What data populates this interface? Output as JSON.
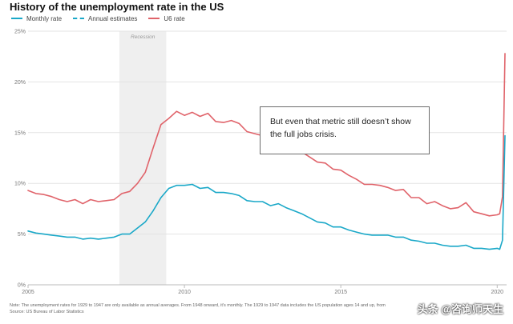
{
  "chart_data": {
    "type": "line",
    "title": "History of the unemployment rate in the US",
    "legend": [
      {
        "name": "Monthly rate",
        "color": "#1aa8c8",
        "style": "solid"
      },
      {
        "name": "Annual estimates",
        "color": "#1aa8c8",
        "style": "dashed"
      },
      {
        "name": "U6 rate",
        "color": "#e0636a",
        "style": "solid"
      }
    ],
    "xlim": [
      2005,
      2020.3
    ],
    "ylim": [
      0,
      25
    ],
    "x_ticks": [
      {
        "value": 2005,
        "label": "2005"
      },
      {
        "value": 2010,
        "label": "2010"
      },
      {
        "value": 2015,
        "label": "2015"
      },
      {
        "value": 2020,
        "label": "2020"
      }
    ],
    "y_ticks": [
      {
        "value": 0,
        "label": "0%"
      },
      {
        "value": 5,
        "label": "5%"
      },
      {
        "value": 10,
        "label": "10%"
      },
      {
        "value": 15,
        "label": "15%"
      },
      {
        "value": 20,
        "label": "20%"
      },
      {
        "value": 25,
        "label": "25%"
      }
    ],
    "recession": {
      "label": "Recession",
      "start": 2007.92,
      "end": 2009.42
    },
    "series": [
      {
        "name": "Monthly rate",
        "color": "#1aa8c8",
        "points": [
          [
            2005.0,
            5.3
          ],
          [
            2005.25,
            5.1
          ],
          [
            2005.5,
            5.0
          ],
          [
            2005.75,
            4.9
          ],
          [
            2006.0,
            4.8
          ],
          [
            2006.25,
            4.7
          ],
          [
            2006.5,
            4.7
          ],
          [
            2006.75,
            4.5
          ],
          [
            2007.0,
            4.6
          ],
          [
            2007.25,
            4.5
          ],
          [
            2007.5,
            4.6
          ],
          [
            2007.75,
            4.7
          ],
          [
            2008.0,
            5.0
          ],
          [
            2008.25,
            5.0
          ],
          [
            2008.5,
            5.6
          ],
          [
            2008.75,
            6.2
          ],
          [
            2009.0,
            7.3
          ],
          [
            2009.25,
            8.6
          ],
          [
            2009.5,
            9.5
          ],
          [
            2009.75,
            9.8
          ],
          [
            2010.0,
            9.8
          ],
          [
            2010.25,
            9.9
          ],
          [
            2010.5,
            9.5
          ],
          [
            2010.75,
            9.6
          ],
          [
            2011.0,
            9.1
          ],
          [
            2011.25,
            9.1
          ],
          [
            2011.5,
            9.0
          ],
          [
            2011.75,
            8.8
          ],
          [
            2012.0,
            8.3
          ],
          [
            2012.25,
            8.2
          ],
          [
            2012.5,
            8.2
          ],
          [
            2012.75,
            7.8
          ],
          [
            2013.0,
            8.0
          ],
          [
            2013.25,
            7.6
          ],
          [
            2013.5,
            7.3
          ],
          [
            2013.75,
            7.0
          ],
          [
            2014.0,
            6.6
          ],
          [
            2014.25,
            6.2
          ],
          [
            2014.5,
            6.1
          ],
          [
            2014.75,
            5.7
          ],
          [
            2015.0,
            5.7
          ],
          [
            2015.25,
            5.4
          ],
          [
            2015.5,
            5.2
          ],
          [
            2015.75,
            5.0
          ],
          [
            2016.0,
            4.9
          ],
          [
            2016.25,
            4.9
          ],
          [
            2016.5,
            4.9
          ],
          [
            2016.75,
            4.7
          ],
          [
            2017.0,
            4.7
          ],
          [
            2017.25,
            4.4
          ],
          [
            2017.5,
            4.3
          ],
          [
            2017.75,
            4.1
          ],
          [
            2018.0,
            4.1
          ],
          [
            2018.25,
            3.9
          ],
          [
            2018.5,
            3.8
          ],
          [
            2018.75,
            3.8
          ],
          [
            2019.0,
            3.9
          ],
          [
            2019.25,
            3.6
          ],
          [
            2019.5,
            3.6
          ],
          [
            2019.75,
            3.5
          ],
          [
            2020.0,
            3.6
          ],
          [
            2020.08,
            3.5
          ],
          [
            2020.17,
            4.4
          ],
          [
            2020.25,
            14.7
          ]
        ]
      },
      {
        "name": "U6 rate",
        "color": "#e0636a",
        "points": [
          [
            2005.0,
            9.3
          ],
          [
            2005.25,
            9.0
          ],
          [
            2005.5,
            8.9
          ],
          [
            2005.75,
            8.7
          ],
          [
            2006.0,
            8.4
          ],
          [
            2006.25,
            8.2
          ],
          [
            2006.5,
            8.4
          ],
          [
            2006.75,
            8.0
          ],
          [
            2007.0,
            8.4
          ],
          [
            2007.25,
            8.2
          ],
          [
            2007.5,
            8.3
          ],
          [
            2007.75,
            8.4
          ],
          [
            2008.0,
            9.0
          ],
          [
            2008.25,
            9.2
          ],
          [
            2008.5,
            10.0
          ],
          [
            2008.75,
            11.1
          ],
          [
            2009.0,
            13.5
          ],
          [
            2009.25,
            15.8
          ],
          [
            2009.5,
            16.4
          ],
          [
            2009.75,
            17.1
          ],
          [
            2010.0,
            16.7
          ],
          [
            2010.25,
            17.0
          ],
          [
            2010.5,
            16.6
          ],
          [
            2010.75,
            16.9
          ],
          [
            2011.0,
            16.1
          ],
          [
            2011.25,
            16.0
          ],
          [
            2011.5,
            16.2
          ],
          [
            2011.75,
            15.9
          ],
          [
            2012.0,
            15.1
          ],
          [
            2012.25,
            14.9
          ],
          [
            2012.5,
            14.7
          ],
          [
            2012.75,
            14.4
          ],
          [
            2013.0,
            14.4
          ],
          [
            2013.25,
            13.8
          ],
          [
            2013.5,
            13.8
          ],
          [
            2013.75,
            13.1
          ],
          [
            2014.0,
            12.6
          ],
          [
            2014.25,
            12.1
          ],
          [
            2014.5,
            12.0
          ],
          [
            2014.75,
            11.4
          ],
          [
            2015.0,
            11.3
          ],
          [
            2015.25,
            10.8
          ],
          [
            2015.5,
            10.4
          ],
          [
            2015.75,
            9.9
          ],
          [
            2016.0,
            9.9
          ],
          [
            2016.25,
            9.8
          ],
          [
            2016.5,
            9.6
          ],
          [
            2016.75,
            9.3
          ],
          [
            2017.0,
            9.4
          ],
          [
            2017.25,
            8.6
          ],
          [
            2017.5,
            8.6
          ],
          [
            2017.75,
            8.0
          ],
          [
            2018.0,
            8.2
          ],
          [
            2018.25,
            7.8
          ],
          [
            2018.5,
            7.5
          ],
          [
            2018.75,
            7.6
          ],
          [
            2019.0,
            8.1
          ],
          [
            2019.25,
            7.2
          ],
          [
            2019.5,
            7.0
          ],
          [
            2019.75,
            6.8
          ],
          [
            2020.0,
            6.9
          ],
          [
            2020.08,
            7.0
          ],
          [
            2020.17,
            8.7
          ],
          [
            2020.25,
            22.8
          ]
        ]
      }
    ]
  },
  "annotation": {
    "text": "But even that metric still doesn’t show the full jobs crisis."
  },
  "footnote": {
    "line1": "Note: The unemployment rates for 1929 to 1947 are only available as annual averages. From 1948 onward, it's monthly. The 1929 to 1947 data includes the US population ages 14 and up, from 1948 onward, ages 16 and up.",
    "line2": "Source: US Bureau of Labor Statistics"
  },
  "watermark": {
    "text": "头条 @咨询师天生"
  }
}
